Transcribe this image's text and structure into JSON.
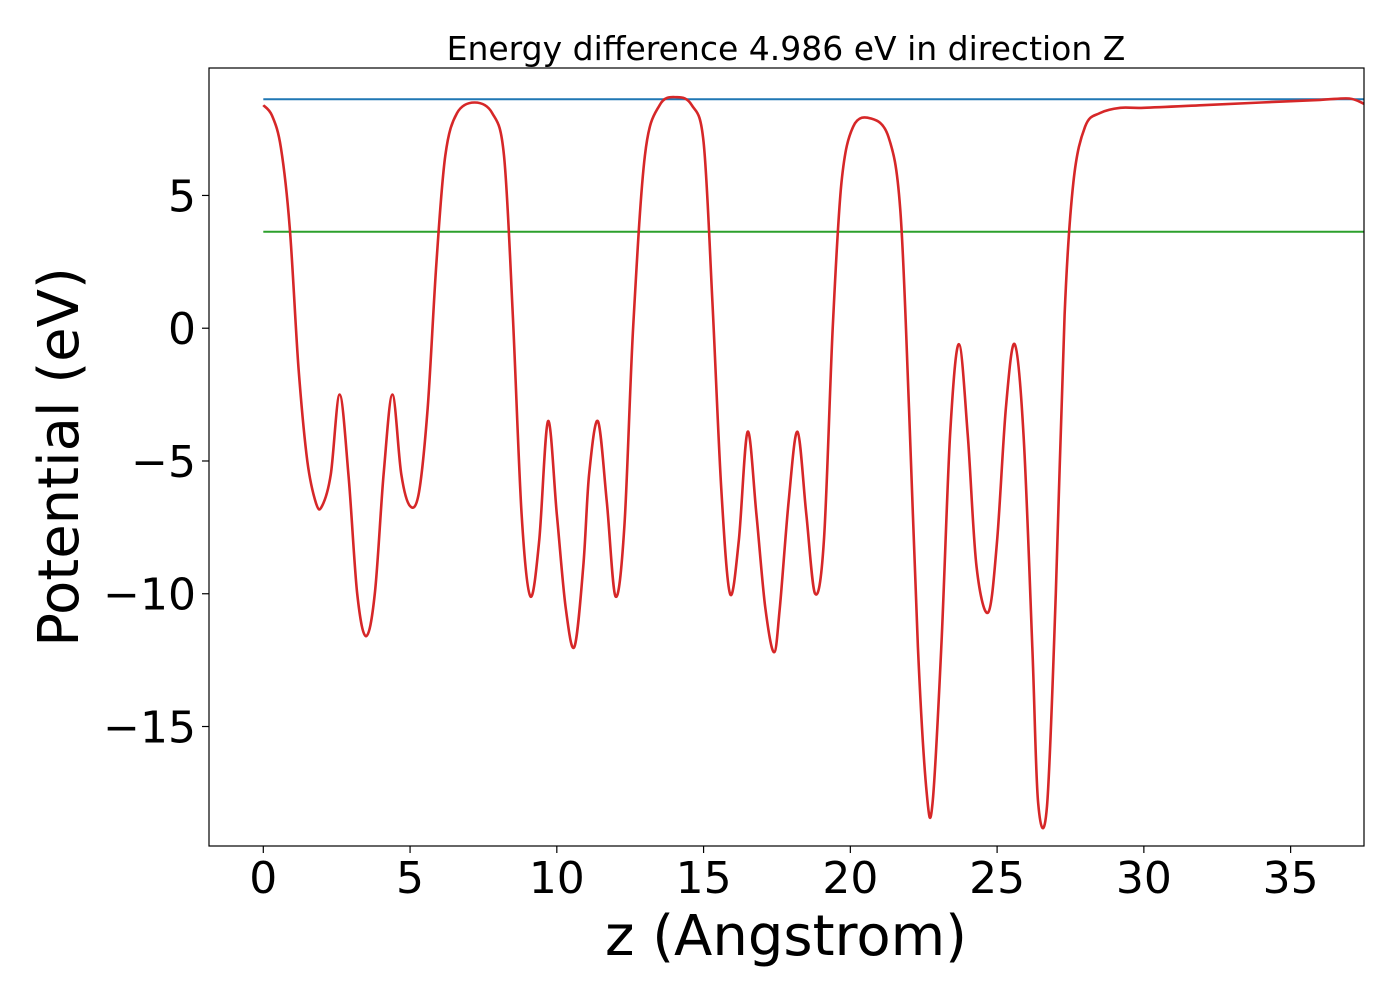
{
  "chart_data": {
    "type": "line",
    "title": "Energy difference 4.986 eV in direction Z",
    "xlabel": "z (Angstrom)",
    "ylabel": "Potential (eV)",
    "xlim": [
      -1.85,
      37.5
    ],
    "ylim": [
      -19.5,
      9.8
    ],
    "xticks": [
      0,
      5,
      10,
      15,
      20,
      25,
      30,
      35
    ],
    "xtick_labels": [
      "0",
      "5",
      "10",
      "15",
      "20",
      "25",
      "30",
      "35"
    ],
    "yticks": [
      5,
      0,
      -5,
      -10,
      -15
    ],
    "ytick_labels": [
      "5",
      "0",
      "−5",
      "−10",
      "−15"
    ],
    "grid": false,
    "legend": false,
    "series": [
      {
        "color": "#d62728",
        "x": [
          0.0,
          0.3,
          0.6,
          0.9,
          1.2,
          1.5,
          1.8,
          2.0,
          2.3,
          2.6,
          2.9,
          3.2,
          3.5,
          3.8,
          4.1,
          4.4,
          4.7,
          5.0,
          5.3,
          5.6,
          5.9,
          6.2,
          6.6,
          7.2,
          7.8,
          8.2,
          8.5,
          8.8,
          9.1,
          9.4,
          9.7,
          10.0,
          10.3,
          10.6,
          10.9,
          11.1,
          11.4,
          11.7,
          12.0,
          12.3,
          12.6,
          13.0,
          13.5,
          14.1,
          14.6,
          15.0,
          15.3,
          15.6,
          15.9,
          16.2,
          16.5,
          16.8,
          17.1,
          17.4,
          17.6,
          17.9,
          18.2,
          18.5,
          18.8,
          19.1,
          19.4,
          19.7,
          20.1,
          20.7,
          21.3,
          21.7,
          22.0,
          22.3,
          22.6,
          22.8,
          23.1,
          23.4,
          23.7,
          24.0,
          24.3,
          24.7,
          25.0,
          25.3,
          25.6,
          25.9,
          26.2,
          26.4,
          26.7,
          27.0,
          27.3,
          27.6,
          28.0,
          28.5,
          29.2,
          30.0,
          32.0,
          34.0,
          36.0,
          37.0,
          37.5
        ],
        "y": [
          8.4,
          8.0,
          6.8,
          3.8,
          -1.5,
          -5.0,
          -6.6,
          -6.7,
          -5.5,
          -2.5,
          -5.5,
          -10.0,
          -11.6,
          -10.0,
          -5.5,
          -2.5,
          -5.5,
          -6.7,
          -6.2,
          -3.0,
          2.5,
          6.5,
          8.1,
          8.5,
          8.1,
          6.5,
          0.5,
          -7.0,
          -10.1,
          -8.0,
          -3.5,
          -7.0,
          -10.5,
          -12.0,
          -9.0,
          -5.5,
          -3.5,
          -6.5,
          -10.1,
          -7.5,
          0.0,
          6.5,
          8.4,
          8.7,
          8.4,
          7.0,
          1.0,
          -6.0,
          -10.0,
          -8.0,
          -3.9,
          -7.0,
          -10.5,
          -12.2,
          -10.5,
          -6.5,
          -3.9,
          -7.0,
          -10.0,
          -8.0,
          0.0,
          5.5,
          7.6,
          7.9,
          7.2,
          4.5,
          -3.0,
          -12.0,
          -17.5,
          -17.9,
          -12.0,
          -4.0,
          -0.6,
          -4.0,
          -9.0,
          -10.7,
          -8.0,
          -3.0,
          -0.6,
          -4.0,
          -12.0,
          -17.9,
          -18.0,
          -10.0,
          0.5,
          5.5,
          7.6,
          8.1,
          8.3,
          8.3,
          8.4,
          8.5,
          8.6,
          8.65,
          8.45
        ]
      },
      {
        "color": "#1f77b4",
        "x": [
          0.0,
          37.5
        ],
        "y": [
          8.62,
          8.62
        ]
      },
      {
        "color": "#2ca02c",
        "x": [
          0.0,
          37.5
        ],
        "y": [
          3.63,
          3.63
        ]
      }
    ]
  }
}
